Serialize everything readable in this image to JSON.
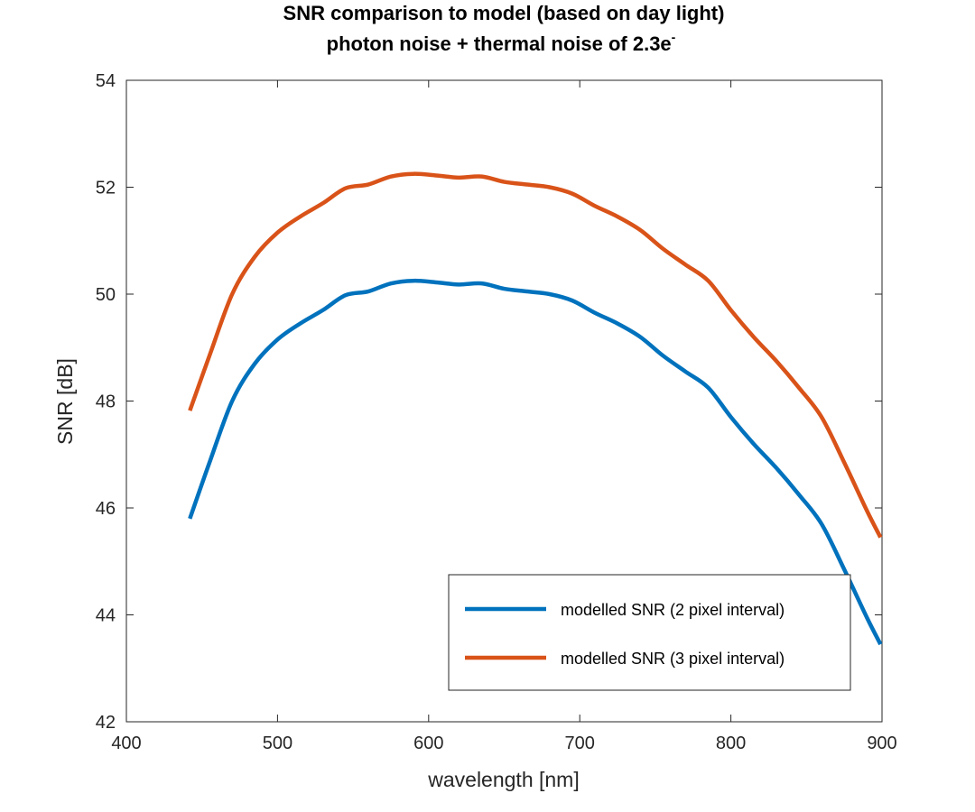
{
  "chart_data": {
    "type": "line",
    "title_line1": "SNR comparison to model (based on day light)",
    "title_line2": "photon noise + thermal noise of 2.3e",
    "title_superscript": "-",
    "xlabel": "wavelength [nm]",
    "ylabel": "SNR [dB]",
    "xlim": [
      400,
      900
    ],
    "ylim": [
      42,
      54
    ],
    "xticks": [
      400,
      500,
      600,
      700,
      800,
      900
    ],
    "yticks": [
      42,
      44,
      46,
      48,
      50,
      52,
      54
    ],
    "grid": false,
    "legend_position": "bottom-right",
    "series": [
      {
        "name": "modelled SNR (2 pixel interval)",
        "color": "#0072BD",
        "x": [
          442,
          455,
          470,
          485,
          500,
          515,
          530,
          545,
          560,
          575,
          590,
          605,
          620,
          635,
          650,
          665,
          680,
          695,
          710,
          725,
          740,
          755,
          770,
          785,
          800,
          815,
          830,
          845,
          860,
          875,
          890,
          899
        ],
        "y": [
          45.8,
          46.85,
          48.0,
          48.7,
          49.15,
          49.45,
          49.7,
          49.98,
          50.05,
          50.2,
          50.25,
          50.22,
          50.18,
          50.2,
          50.1,
          50.05,
          50.0,
          49.88,
          49.65,
          49.45,
          49.2,
          48.85,
          48.55,
          48.25,
          47.7,
          47.2,
          46.75,
          46.25,
          45.7,
          44.85,
          43.95,
          43.45
        ]
      },
      {
        "name": "modelled SNR (3 pixel interval)",
        "color": "#D95319",
        "x": [
          442,
          455,
          470,
          485,
          500,
          515,
          530,
          545,
          560,
          575,
          590,
          605,
          620,
          635,
          650,
          665,
          680,
          695,
          710,
          725,
          740,
          755,
          770,
          785,
          800,
          815,
          830,
          845,
          860,
          875,
          890,
          899
        ],
        "y": [
          47.82,
          48.85,
          50.0,
          50.7,
          51.15,
          51.45,
          51.7,
          51.98,
          52.05,
          52.2,
          52.25,
          52.22,
          52.18,
          52.2,
          52.1,
          52.05,
          52.0,
          51.88,
          51.65,
          51.45,
          51.2,
          50.85,
          50.55,
          50.25,
          49.7,
          49.2,
          48.75,
          48.25,
          47.7,
          46.85,
          45.95,
          45.45
        ]
      }
    ]
  }
}
